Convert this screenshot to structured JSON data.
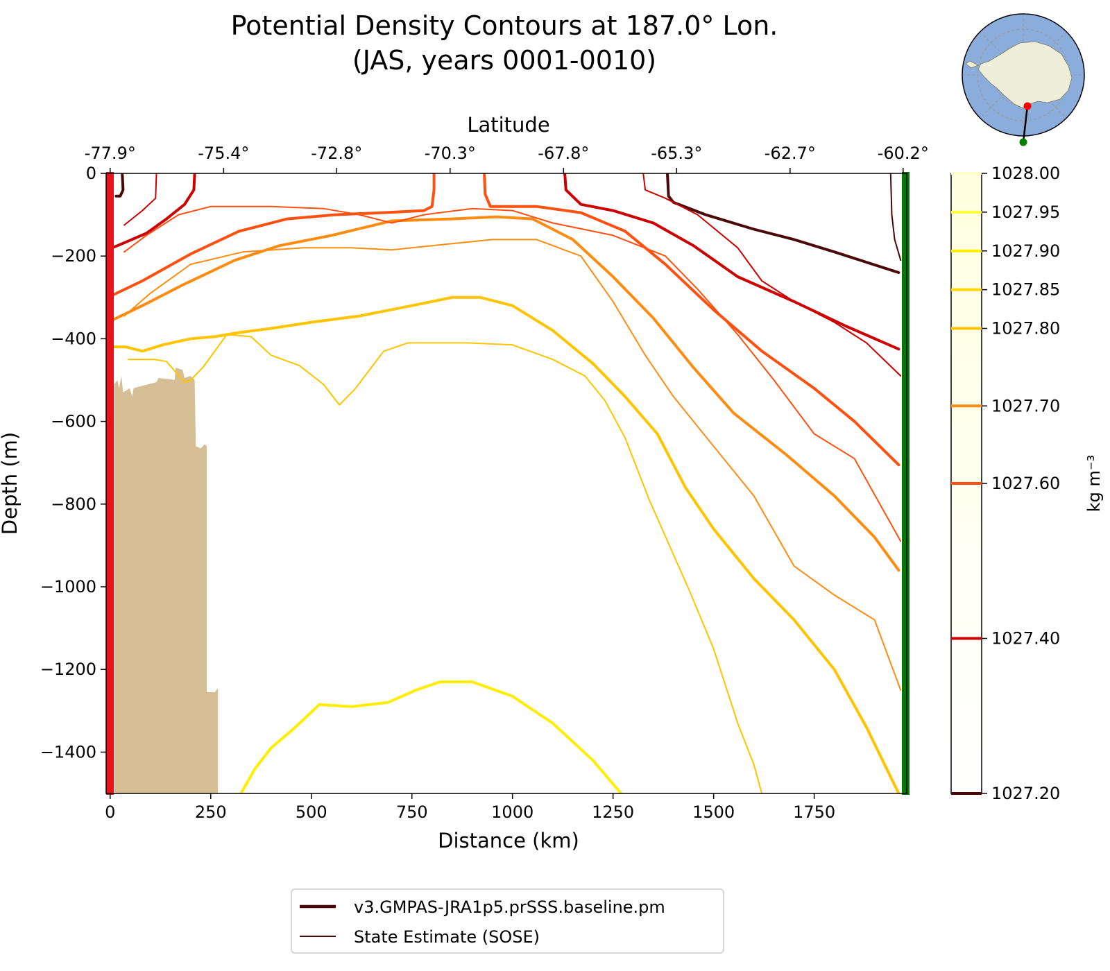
{
  "chart_data": {
    "type": "line",
    "title": "Potential Density Contours at 187.0° Lon.",
    "subtitle": "(JAS, years 0001-0010)",
    "xlabel": "Distance (km)",
    "ylabel": "Depth (m)",
    "top_axis_label": "Latitude",
    "colorbar_label": "kg m⁻³",
    "xlim": [
      -10,
      1980
    ],
    "ylim": [
      -1500,
      0
    ],
    "x_ticks": [
      0,
      250,
      500,
      750,
      1000,
      1250,
      1500,
      1750
    ],
    "x_tick_labels": [
      "0",
      "250",
      "500",
      "750",
      "1000",
      "1250",
      "1500",
      "1750"
    ],
    "y_ticks": [
      0,
      -200,
      -400,
      -600,
      -800,
      -1000,
      -1200,
      -1400
    ],
    "y_tick_labels": [
      "0",
      "−200",
      "−400",
      "−600",
      "−800",
      "−1000",
      "−1200",
      "−1400"
    ],
    "lat_tick_positions": [
      0,
      282,
      563,
      845,
      1127,
      1408,
      1690,
      1971
    ],
    "lat_tick_labels": [
      "-77.9°",
      "-75.4°",
      "-72.8°",
      "-70.3°",
      "-67.8°",
      "-65.3°",
      "-62.7°",
      "-60.2°"
    ],
    "colorbar_levels": [
      1027.2,
      1027.4,
      1027.6,
      1027.7,
      1027.8,
      1027.85,
      1027.9,
      1027.95,
      1028.0
    ],
    "colorbar_tick_labels": [
      "1027.20",
      "1027.40",
      "1027.60",
      "1027.70",
      "1027.80",
      "1027.85",
      "1027.90",
      "1027.95",
      "1028.00"
    ],
    "colorbar_colors": [
      "#4a0808",
      "#cc0000",
      "#ff5010",
      "#ff8c10",
      "#ffc400",
      "#ffd800",
      "#ffee00",
      "#ffff33",
      "#ffffcc"
    ],
    "section_start_color": "#e8141b",
    "section_end_color": "#047a04",
    "bathymetry_color": "#d6bf94",
    "bathymetry": [
      [
        10,
        -1500
      ],
      [
        10,
        -510
      ],
      [
        18,
        -500
      ],
      [
        22,
        -520
      ],
      [
        28,
        -490
      ],
      [
        32,
        -530
      ],
      [
        40,
        -525
      ],
      [
        48,
        -520
      ],
      [
        55,
        -540
      ],
      [
        58,
        -520
      ],
      [
        75,
        -515
      ],
      [
        95,
        -510
      ],
      [
        115,
        -505
      ],
      [
        120,
        -495
      ],
      [
        150,
        -498
      ],
      [
        160,
        -500
      ],
      [
        163,
        -470
      ],
      [
        180,
        -475
      ],
      [
        185,
        -495
      ],
      [
        200,
        -490
      ],
      [
        210,
        -500
      ],
      [
        213,
        -660
      ],
      [
        225,
        -665
      ],
      [
        235,
        -655
      ],
      [
        240,
        -660
      ],
      [
        240,
        -1255
      ],
      [
        260,
        -1255
      ],
      [
        268,
        -1245
      ],
      [
        268,
        -1500
      ]
    ],
    "series": [
      {
        "model": true,
        "level": 1027.2,
        "pts": [
          [
            30,
            0
          ],
          [
            32,
            -40
          ],
          [
            25,
            -55
          ],
          [
            15,
            -55
          ]
        ]
      },
      {
        "model": true,
        "level": 1027.2,
        "pts": [
          [
            1385,
            0
          ],
          [
            1388,
            -55
          ],
          [
            1400,
            -70
          ],
          [
            1480,
            -100
          ],
          [
            1600,
            -135
          ],
          [
            1700,
            -160
          ],
          [
            1800,
            -190
          ],
          [
            1880,
            -215
          ],
          [
            1960,
            -240
          ]
        ]
      },
      {
        "model": true,
        "level": 1027.4,
        "pts": [
          [
            210,
            0
          ],
          [
            208,
            -40
          ],
          [
            185,
            -75
          ],
          [
            140,
            -110
          ],
          [
            90,
            -145
          ],
          [
            30,
            -170
          ],
          [
            5,
            -180
          ]
        ]
      },
      {
        "model": true,
        "level": 1027.4,
        "pts": [
          [
            1130,
            0
          ],
          [
            1133,
            -40
          ],
          [
            1170,
            -75
          ],
          [
            1250,
            -90
          ],
          [
            1350,
            -120
          ],
          [
            1450,
            -175
          ],
          [
            1560,
            -250
          ],
          [
            1700,
            -310
          ],
          [
            1830,
            -370
          ],
          [
            1960,
            -425
          ]
        ]
      },
      {
        "model": true,
        "level": 1027.6,
        "pts": [
          [
            5,
            -295
          ],
          [
            80,
            -260
          ],
          [
            200,
            -195
          ],
          [
            320,
            -140
          ],
          [
            440,
            -110
          ],
          [
            560,
            -100
          ],
          [
            680,
            -95
          ],
          [
            780,
            -90
          ],
          [
            800,
            -80
          ],
          [
            805,
            -40
          ],
          [
            805,
            0
          ]
        ]
      },
      {
        "model": true,
        "level": 1027.6,
        "pts": [
          [
            930,
            0
          ],
          [
            932,
            -50
          ],
          [
            945,
            -80
          ],
          [
            1060,
            -80
          ],
          [
            1170,
            -95
          ],
          [
            1280,
            -140
          ],
          [
            1380,
            -220
          ],
          [
            1500,
            -330
          ],
          [
            1620,
            -430
          ],
          [
            1750,
            -520
          ],
          [
            1850,
            -600
          ],
          [
            1960,
            -705
          ]
        ]
      },
      {
        "model": true,
        "level": 1027.7,
        "pts": [
          [
            5,
            -355
          ],
          [
            80,
            -320
          ],
          [
            180,
            -270
          ],
          [
            310,
            -210
          ],
          [
            420,
            -175
          ],
          [
            550,
            -150
          ],
          [
            700,
            -115
          ],
          [
            850,
            -110
          ],
          [
            960,
            -105
          ],
          [
            1050,
            -110
          ],
          [
            1150,
            -160
          ],
          [
            1250,
            -250
          ],
          [
            1350,
            -350
          ],
          [
            1450,
            -470
          ],
          [
            1550,
            -580
          ],
          [
            1680,
            -680
          ],
          [
            1800,
            -780
          ],
          [
            1900,
            -880
          ],
          [
            1960,
            -960
          ]
        ]
      },
      {
        "model": true,
        "level": 1027.8,
        "pts": [
          [
            5,
            -420
          ],
          [
            40,
            -420
          ],
          [
            80,
            -430
          ],
          [
            130,
            -415
          ],
          [
            200,
            -400
          ],
          [
            260,
            -395
          ],
          [
            320,
            -385
          ],
          [
            400,
            -375
          ],
          [
            500,
            -360
          ],
          [
            620,
            -345
          ],
          [
            750,
            -320
          ],
          [
            850,
            -300
          ],
          [
            920,
            -300
          ],
          [
            1000,
            -320
          ],
          [
            1100,
            -380
          ],
          [
            1200,
            -460
          ],
          [
            1280,
            -540
          ],
          [
            1360,
            -630
          ],
          [
            1430,
            -760
          ],
          [
            1500,
            -860
          ],
          [
            1600,
            -980
          ],
          [
            1700,
            -1080
          ],
          [
            1800,
            -1200
          ],
          [
            1880,
            -1340
          ],
          [
            1960,
            -1500
          ]
        ]
      },
      {
        "model": true,
        "level": 1027.9,
        "pts": [
          [
            325,
            -1500
          ],
          [
            360,
            -1440
          ],
          [
            400,
            -1390
          ],
          [
            460,
            -1340
          ],
          [
            520,
            -1285
          ],
          [
            600,
            -1290
          ],
          [
            690,
            -1280
          ],
          [
            760,
            -1250
          ],
          [
            820,
            -1230
          ],
          [
            900,
            -1230
          ],
          [
            1000,
            -1265
          ],
          [
            1100,
            -1330
          ],
          [
            1200,
            -1420
          ],
          [
            1270,
            -1500
          ]
        ]
      },
      {
        "model": false,
        "level": 1027.2,
        "pts": [
          [
            1940,
            0
          ],
          [
            1943,
            -100
          ],
          [
            1950,
            -160
          ],
          [
            1965,
            -210
          ]
        ]
      },
      {
        "model": false,
        "level": 1027.4,
        "pts": [
          [
            115,
            0
          ],
          [
            113,
            -60
          ],
          [
            80,
            -90
          ],
          [
            35,
            -125
          ]
        ]
      },
      {
        "model": false,
        "level": 1027.4,
        "pts": [
          [
            1325,
            0
          ],
          [
            1330,
            -40
          ],
          [
            1380,
            -60
          ],
          [
            1460,
            -100
          ],
          [
            1560,
            -180
          ],
          [
            1620,
            -260
          ],
          [
            1700,
            -310
          ],
          [
            1800,
            -360
          ],
          [
            1880,
            -410
          ],
          [
            1965,
            -490
          ]
        ]
      },
      {
        "model": false,
        "level": 1027.6,
        "pts": [
          [
            35,
            -190
          ],
          [
            90,
            -150
          ],
          [
            170,
            -100
          ],
          [
            250,
            -80
          ],
          [
            400,
            -80
          ],
          [
            530,
            -85
          ],
          [
            620,
            -100
          ],
          [
            700,
            -120
          ],
          [
            780,
            -100
          ],
          [
            900,
            -85
          ],
          [
            1000,
            -90
          ],
          [
            1100,
            -120
          ],
          [
            1250,
            -150
          ],
          [
            1380,
            -200
          ],
          [
            1460,
            -280
          ],
          [
            1560,
            -390
          ],
          [
            1650,
            -500
          ],
          [
            1750,
            -630
          ],
          [
            1850,
            -690
          ],
          [
            1965,
            -890
          ]
        ]
      },
      {
        "model": false,
        "level": 1027.7,
        "pts": [
          [
            35,
            -345
          ],
          [
            100,
            -290
          ],
          [
            200,
            -220
          ],
          [
            330,
            -190
          ],
          [
            480,
            -180
          ],
          [
            600,
            -180
          ],
          [
            700,
            -185
          ],
          [
            850,
            -170
          ],
          [
            950,
            -160
          ],
          [
            1060,
            -160
          ],
          [
            1170,
            -200
          ],
          [
            1250,
            -310
          ],
          [
            1330,
            -440
          ],
          [
            1400,
            -540
          ],
          [
            1500,
            -660
          ],
          [
            1600,
            -780
          ],
          [
            1700,
            -950
          ],
          [
            1800,
            -1020
          ],
          [
            1900,
            -1080
          ],
          [
            1965,
            -1250
          ]
        ]
      },
      {
        "model": false,
        "level": 1027.8,
        "pts": [
          [
            45,
            -450
          ],
          [
            110,
            -450
          ],
          [
            140,
            -455
          ],
          [
            185,
            -505
          ],
          [
            200,
            -500
          ],
          [
            230,
            -470
          ],
          [
            290,
            -390
          ],
          [
            350,
            -395
          ],
          [
            400,
            -440
          ],
          [
            470,
            -465
          ],
          [
            530,
            -510
          ],
          [
            570,
            -560
          ],
          [
            610,
            -520
          ],
          [
            680,
            -430
          ],
          [
            740,
            -410
          ],
          [
            890,
            -410
          ],
          [
            1000,
            -415
          ],
          [
            1100,
            -450
          ],
          [
            1180,
            -490
          ],
          [
            1230,
            -550
          ],
          [
            1280,
            -640
          ],
          [
            1340,
            -790
          ],
          [
            1390,
            -900
          ],
          [
            1440,
            -1010
          ],
          [
            1500,
            -1150
          ],
          [
            1560,
            -1330
          ],
          [
            1600,
            -1430
          ],
          [
            1620,
            -1500
          ]
        ]
      }
    ],
    "legend": [
      {
        "label": "v3.GMPAS-JRA1p5.prSSS.baseline.pm",
        "model": true
      },
      {
        "label": "State Estimate (SOSE)",
        "model": false
      }
    ]
  },
  "inset_map": {
    "ocean_color": "#8aaddc",
    "land_color": "#efefd9",
    "start_marker_color": "#ff0000",
    "end_marker_color": "#008000"
  }
}
